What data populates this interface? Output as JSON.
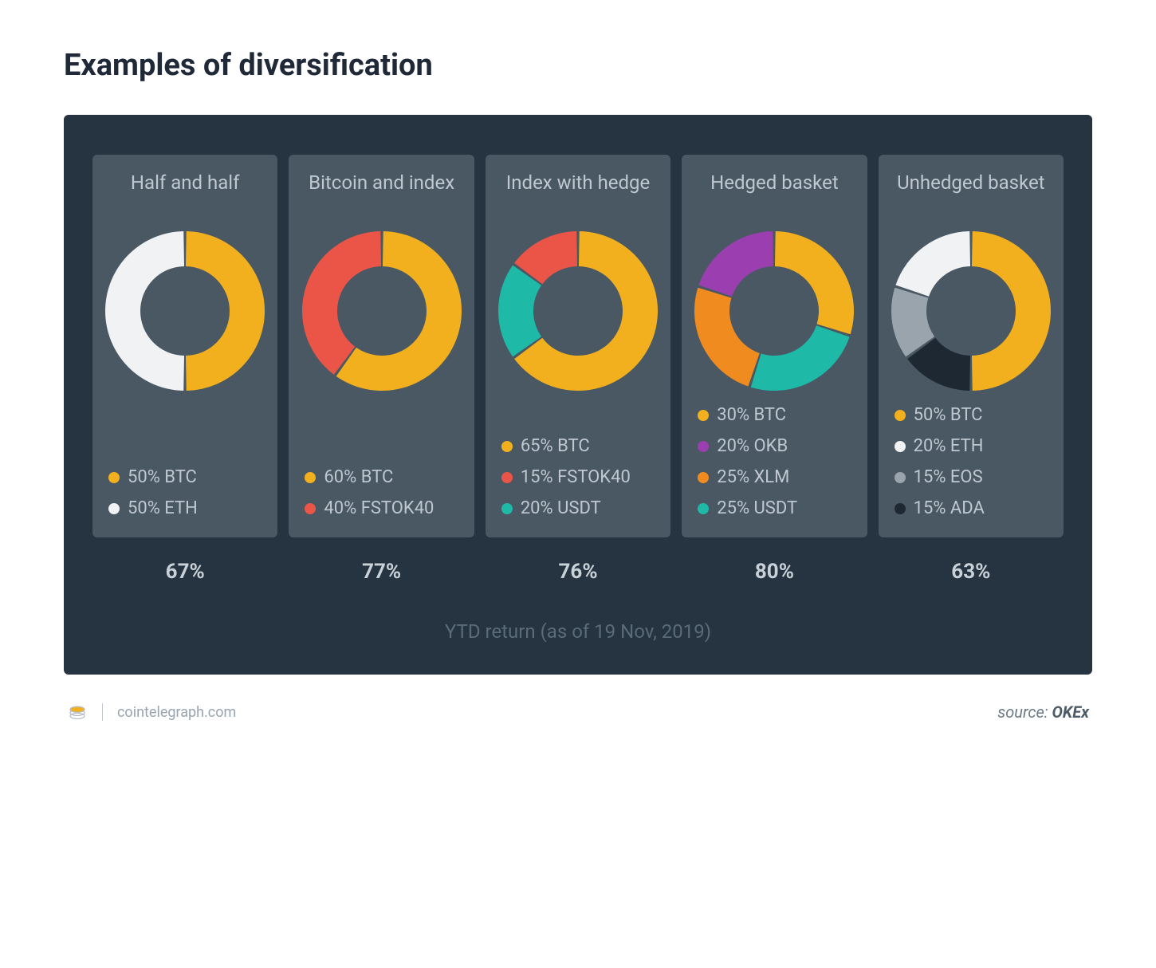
{
  "title": "Examples of diversification",
  "panel": {
    "background_color": "#263340",
    "card_background_color": "#4a5864",
    "title_color": "#bfc8d0",
    "legend_text_color": "#bfc8d0",
    "donut_inner_ratio": 0.56,
    "donut_gap_color": "#4a5864",
    "donut_gap_deg": 2
  },
  "typography": {
    "title_fontsize": 38,
    "card_title_fontsize": 24,
    "legend_fontsize": 22,
    "return_fontsize": 26,
    "footnote_fontsize": 24
  },
  "portfolios": [
    {
      "name": "Half and half",
      "return_label": "67%",
      "slices": [
        {
          "label": "50% BTC",
          "value": 50,
          "color": "#f2b01e"
        },
        {
          "label": "50% ETH",
          "value": 50,
          "color": "#f0f2f4"
        }
      ]
    },
    {
      "name": "Bitcoin and index",
      "return_label": "77%",
      "slices": [
        {
          "label": "60% BTC",
          "value": 60,
          "color": "#f2b01e"
        },
        {
          "label": "40% FSTOK40",
          "value": 40,
          "color": "#eb5548"
        }
      ]
    },
    {
      "name": "Index with hedge",
      "return_label": "76%",
      "slices": [
        {
          "label": "65% BTC",
          "value": 65,
          "color": "#f2b01e"
        },
        {
          "label": "15% FSTOK40",
          "value": 15,
          "color": "#eb5548"
        },
        {
          "label": "20% USDT",
          "value": 20,
          "color": "#1fb9a8"
        }
      ]
    },
    {
      "name": "Hedged basket",
      "return_label": "80%",
      "slices": [
        {
          "label": "30% BTC",
          "value": 30,
          "color": "#f2b01e"
        },
        {
          "label": "20% OKB",
          "value": 20,
          "color": "#9b3fb0"
        },
        {
          "label": "25% XLM",
          "value": 25,
          "color": "#f08b1f"
        },
        {
          "label": "25% USDT",
          "value": 25,
          "color": "#1fb9a8"
        }
      ]
    },
    {
      "name": "Unhedged basket",
      "return_label": "63%",
      "slices": [
        {
          "label": "50% BTC",
          "value": 50,
          "color": "#f2b01e"
        },
        {
          "label": "20% ETH",
          "value": 20,
          "color": "#f0f2f4"
        },
        {
          "label": "15% EOS",
          "value": 15,
          "color": "#9aa4ad"
        },
        {
          "label": "15% ADA",
          "value": 15,
          "color": "#1d2833"
        }
      ]
    }
  ],
  "footnote": "YTD return (as of 19 Nov, 2019)",
  "footer": {
    "site": "cointelegraph.com",
    "source_prefix": "source: ",
    "source_name": "OKEx"
  }
}
